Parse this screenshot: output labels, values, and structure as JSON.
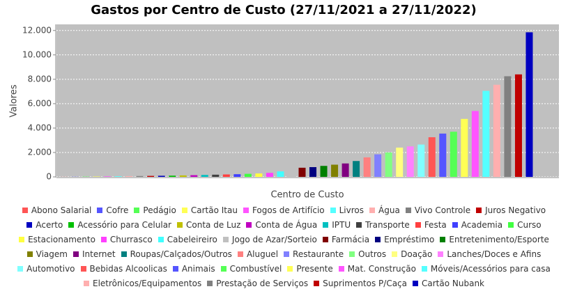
{
  "chart_data": {
    "type": "bar",
    "title": "Gastos por Centro de Custo (27/11/2021 a 27/11/2022)",
    "x_label": "Centro de Custo",
    "y_label": "Valores",
    "ylim": [
      0,
      12500
    ],
    "yticks": [
      {
        "value": 0,
        "label": "0"
      },
      {
        "value": 2000,
        "label": "2.000"
      },
      {
        "value": 4000,
        "label": "4.000"
      },
      {
        "value": 6000,
        "label": "6.000"
      },
      {
        "value": 8000,
        "label": "8.000"
      },
      {
        "value": 10000,
        "label": "10.000"
      },
      {
        "value": 12000,
        "label": "12.000"
      }
    ],
    "grid": true,
    "series": [
      {
        "name": "Abono Salarial",
        "color": "#ff5555",
        "values": [
          5
        ]
      },
      {
        "name": "Cofre",
        "color": "#5555ff",
        "values": [
          10
        ]
      },
      {
        "name": "Pedágio",
        "color": "#55ff55",
        "values": [
          20
        ]
      },
      {
        "name": "Cartão Itau",
        "color": "#ffff55",
        "values": [
          30
        ]
      },
      {
        "name": "Fogos de Artifício",
        "color": "#ff55ff",
        "values": [
          40
        ]
      },
      {
        "name": "Livros",
        "color": "#55ffff",
        "values": [
          50
        ]
      },
      {
        "name": "Água",
        "color": "#ffafaf",
        "values": [
          60
        ]
      },
      {
        "name": "Vivo Controle",
        "color": "#808080",
        "values": [
          70
        ]
      },
      {
        "name": "Juros Negativo",
        "color": "#c00000",
        "values": [
          80
        ]
      },
      {
        "name": "Acerto",
        "color": "#0000c0",
        "values": [
          90
        ]
      },
      {
        "name": "Acessório para Celular",
        "color": "#00c000",
        "values": [
          100
        ]
      },
      {
        "name": "Conta de Luz",
        "color": "#c0c000",
        "values": [
          120
        ]
      },
      {
        "name": "Conta de Água",
        "color": "#c000c0",
        "values": [
          140
        ]
      },
      {
        "name": "IPTU",
        "color": "#00c0c0",
        "values": [
          160
        ]
      },
      {
        "name": "Transporte",
        "color": "#404040",
        "values": [
          180
        ]
      },
      {
        "name": "Festa",
        "color": "#ff4040",
        "values": [
          200
        ]
      },
      {
        "name": "Academia",
        "color": "#4040ff",
        "values": [
          220
        ]
      },
      {
        "name": "Curso",
        "color": "#40ff40",
        "values": [
          250
        ]
      },
      {
        "name": "Estacionamento",
        "color": "#ffff40",
        "values": [
          280
        ]
      },
      {
        "name": "Churrasco",
        "color": "#ff40ff",
        "values": [
          330
        ]
      },
      {
        "name": "Cabeleireiro",
        "color": "#40ffff",
        "values": [
          450
        ]
      },
      {
        "name": "Jogo de Azar/Sorteio",
        "color": "#c0c0c0",
        "values": [
          700
        ]
      },
      {
        "name": "Farmácia",
        "color": "#800000",
        "values": [
          750
        ]
      },
      {
        "name": "Empréstimo",
        "color": "#000080",
        "values": [
          800
        ]
      },
      {
        "name": "Entretenimento/Esporte",
        "color": "#008000",
        "values": [
          900
        ]
      },
      {
        "name": "Viagem",
        "color": "#808000",
        "values": [
          1000
        ]
      },
      {
        "name": "Internet",
        "color": "#800080",
        "values": [
          1100
        ]
      },
      {
        "name": "Roupas/Calçados/Outros",
        "color": "#008080",
        "values": [
          1300
        ]
      },
      {
        "name": "Aluguel",
        "color": "#ff8080",
        "values": [
          1600
        ]
      },
      {
        "name": "Restaurante",
        "color": "#8080ff",
        "values": [
          1850
        ]
      },
      {
        "name": "Outros",
        "color": "#80ff80",
        "values": [
          2000
        ]
      },
      {
        "name": "Doação",
        "color": "#ffff80",
        "values": [
          2400
        ]
      },
      {
        "name": "Lanches/Doces e Afins",
        "color": "#ff80ff",
        "values": [
          2500
        ]
      },
      {
        "name": "Automotivo",
        "color": "#80ffff",
        "values": [
          2650
        ]
      },
      {
        "name": "Bebidas Alcoolicas",
        "color": "#ff5555",
        "values": [
          3250
        ]
      },
      {
        "name": "Animais",
        "color": "#5555ff",
        "values": [
          3550
        ]
      },
      {
        "name": "Combustível",
        "color": "#55ff55",
        "values": [
          3700
        ]
      },
      {
        "name": "Presente",
        "color": "#ffff55",
        "values": [
          4750
        ]
      },
      {
        "name": "Mat. Construção",
        "color": "#ff55ff",
        "values": [
          5400
        ]
      },
      {
        "name": "Móveis/Acessórios para casa",
        "color": "#55ffff",
        "values": [
          7050
        ]
      },
      {
        "name": "Eletrônicos/Equipamentos",
        "color": "#ffafaf",
        "values": [
          7550
        ]
      },
      {
        "name": "Prestação de Serviços",
        "color": "#808080",
        "values": [
          8250
        ]
      },
      {
        "name": "Suprimentos P/Caça",
        "color": "#c00000",
        "values": [
          8400
        ]
      },
      {
        "name": "Cartão Nubank",
        "color": "#0000c0",
        "values": [
          11850
        ]
      }
    ]
  }
}
